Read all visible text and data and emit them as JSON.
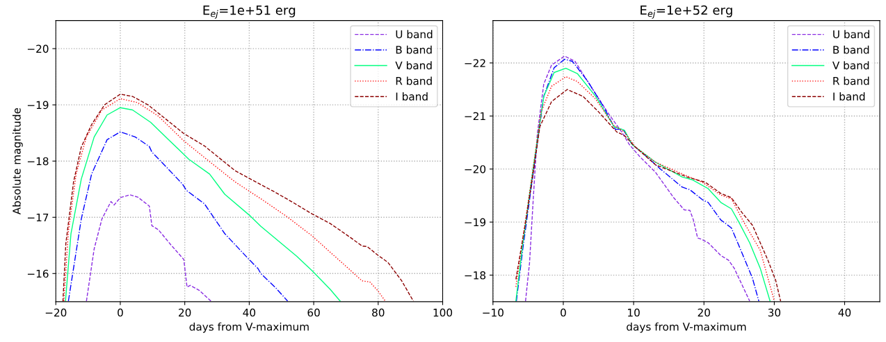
{
  "chart_data": [
    {
      "type": "line",
      "title": "E$_{ej}$=1e+51 erg",
      "xlabel": "days from V-maximum",
      "ylabel": "Absolute magnitude",
      "xlim": [
        -20,
        100
      ],
      "xticks": [
        -20,
        0,
        20,
        40,
        60,
        80,
        100
      ],
      "ylim": [
        -15.5,
        -20.5
      ],
      "yticks": [
        -16,
        -17,
        -18,
        -19,
        -20
      ],
      "grid": true,
      "legend": "top right",
      "series": [
        {
          "name": "U band",
          "color": "#8a2be2",
          "line_style": "dashed",
          "x": [
            -10.5,
            -8.1,
            -5.7,
            -2.9,
            -1.9,
            0,
            3,
            5.4,
            9,
            9.8,
            11.8,
            15.7,
            19.7,
            20.7,
            21.7,
            24.5,
            28.1
          ],
          "values": [
            -15.51,
            -16.44,
            -16.97,
            -17.28,
            -17.22,
            -17.35,
            -17.4,
            -17.36,
            -17.2,
            -16.85,
            -16.78,
            -16.51,
            -16.25,
            -15.76,
            -15.79,
            -15.7,
            -15.51
          ]
        },
        {
          "name": "B band",
          "color": "#0000ff",
          "line_style": "dashdot",
          "x": [
            -16.1,
            -12.1,
            -8.9,
            -4.1,
            0,
            4.6,
            9,
            9.8,
            14.2,
            19.3,
            20.5,
            26.1,
            32.4,
            39.6,
            42.7,
            43.6,
            48.3,
            51.9
          ],
          "values": [
            -15.51,
            -16.97,
            -17.77,
            -18.38,
            -18.52,
            -18.43,
            -18.26,
            -18.16,
            -17.9,
            -17.59,
            -17.48,
            -17.24,
            -16.71,
            -16.27,
            -16.09,
            -16.0,
            -15.74,
            -15.51
          ]
        },
        {
          "name": "V band",
          "color": "#00ff7f",
          "line_style": "solid",
          "x": [
            -17,
            -15.3,
            -12.1,
            -8.1,
            -4.1,
            0,
            3.8,
            9.4,
            15,
            19.7,
            21.3,
            27.7,
            32.4,
            40.4,
            43.6,
            54.7,
            59.5,
            65.1,
            68.2
          ],
          "values": [
            -15.51,
            -16.71,
            -17.68,
            -18.43,
            -18.82,
            -18.95,
            -18.91,
            -18.69,
            -18.38,
            -18.12,
            -18.03,
            -17.77,
            -17.41,
            -17.02,
            -16.84,
            -16.31,
            -16.05,
            -15.72,
            -15.51
          ]
        },
        {
          "name": "R band",
          "color": "#ff0000",
          "line_style": "dotted",
          "x": [
            -17.5,
            -16.1,
            -13.7,
            -10.5,
            -5.7,
            0,
            5.4,
            11.8,
            19.7,
            27.7,
            35.6,
            43.6,
            51.5,
            59.5,
            65.1,
            69.8,
            75,
            77.4,
            79.8,
            82.2
          ],
          "values": [
            -15.51,
            -16.75,
            -17.77,
            -18.43,
            -18.91,
            -19.11,
            -19.04,
            -18.8,
            -18.36,
            -17.99,
            -17.63,
            -17.33,
            -17.02,
            -16.67,
            -16.38,
            -16.14,
            -15.87,
            -15.85,
            -15.7,
            -15.51
          ]
        },
        {
          "name": "I band",
          "color": "#8b0000",
          "line_style": "dashed",
          "x": [
            -17.8,
            -16.9,
            -14.5,
            -12.1,
            -8.9,
            -4.9,
            0,
            3.8,
            8.6,
            13.4,
            19.7,
            26.1,
            31.7,
            35.6,
            40.4,
            47.6,
            53.1,
            59.5,
            65.1,
            67.4,
            71.4,
            75,
            76.6,
            79.8,
            83,
            87.3,
            90.9
          ],
          "values": [
            -15.5,
            -16.53,
            -17.63,
            -18.25,
            -18.65,
            -19.0,
            -19.19,
            -19.15,
            -19.0,
            -18.78,
            -18.49,
            -18.27,
            -18.01,
            -17.83,
            -17.68,
            -17.46,
            -17.28,
            -17.06,
            -16.89,
            -16.8,
            -16.64,
            -16.49,
            -16.48,
            -16.33,
            -16.2,
            -15.87,
            -15.51
          ]
        }
      ]
    },
    {
      "type": "line",
      "title": "E$_{ej}$=1e+52 erg",
      "xlabel": "days from V-maximum",
      "xlim": [
        -10,
        45
      ],
      "xticks": [
        -10,
        0,
        10,
        20,
        30,
        40
      ],
      "ylim": [
        -17.5,
        -22.8
      ],
      "yticks": [
        -18,
        -19,
        -20,
        -21,
        -22
      ],
      "grid": true,
      "legend": "top right",
      "series": [
        {
          "name": "U band",
          "color": "#8a2be2",
          "line_style": "dashed",
          "x": [
            -5.37,
            -4.8,
            -4.26,
            -3.7,
            -2.78,
            -1.67,
            0.19,
            1.67,
            3.9,
            6.5,
            8.3,
            9.4,
            10.9,
            13.1,
            15.7,
            17.2,
            18,
            18.5,
            19.1,
            19.6,
            20.6,
            22.4,
            23.5,
            24.3,
            26.5
          ],
          "values": [
            -17.51,
            -18.23,
            -19.46,
            -20.65,
            -21.6,
            -21.96,
            -22.13,
            -22.03,
            -21.56,
            -21.03,
            -20.7,
            -20.46,
            -20.23,
            -19.94,
            -19.46,
            -19.23,
            -19.22,
            -19.04,
            -18.7,
            -18.68,
            -18.61,
            -18.37,
            -18.28,
            -18.13,
            -17.51
          ]
        },
        {
          "name": "B band",
          "color": "#0000ff",
          "line_style": "dashdot",
          "x": [
            -6.67,
            -5.74,
            -4.26,
            -2.78,
            -1.3,
            0.19,
            1.3,
            3.5,
            5.7,
            7.4,
            8.5,
            9.8,
            11.3,
            13.9,
            16.9,
            18,
            19.8,
            20.6,
            22.4,
            23.9,
            25.4,
            26.9,
            27.8
          ],
          "values": [
            -17.51,
            -18.51,
            -19.94,
            -21.37,
            -21.91,
            -22.07,
            -22.03,
            -21.65,
            -21.18,
            -20.75,
            -20.75,
            -20.46,
            -20.3,
            -19.99,
            -19.66,
            -19.61,
            -19.42,
            -19.37,
            -19.04,
            -18.89,
            -18.42,
            -17.94,
            -17.51
          ]
        },
        {
          "name": "V band",
          "color": "#00ff7f",
          "line_style": "solid",
          "x": [
            -6.74,
            -5.74,
            -4.26,
            -2.78,
            -1.3,
            0.37,
            2.0,
            4.6,
            7.2,
            8.7,
            9.8,
            13.1,
            16.9,
            18.3,
            20.6,
            22.4,
            23.9,
            25,
            26.5,
            28,
            29.4
          ],
          "values": [
            -17.51,
            -18.61,
            -20.04,
            -21.37,
            -21.82,
            -21.9,
            -21.8,
            -21.37,
            -20.8,
            -20.73,
            -20.46,
            -20.13,
            -19.85,
            -19.8,
            -19.63,
            -19.37,
            -19.25,
            -18.99,
            -18.61,
            -18.13,
            -17.51
          ]
        },
        {
          "name": "R band",
          "color": "#ff0000",
          "line_style": "dotted",
          "x": [
            -6.74,
            -5.74,
            -4.26,
            -3.15,
            -1.67,
            0.37,
            2.0,
            4.6,
            7.2,
            8.7,
            10.2,
            13.1,
            17.6,
            19.8,
            22.4,
            23.9,
            25.7,
            28,
            30
          ],
          "values": [
            -17.78,
            -18.7,
            -20.04,
            -21.08,
            -21.56,
            -21.74,
            -21.65,
            -21.32,
            -20.82,
            -20.7,
            -20.42,
            -20.13,
            -19.87,
            -19.75,
            -19.51,
            -19.44,
            -18.99,
            -18.47,
            -17.51
          ]
        },
        {
          "name": "I band",
          "color": "#8b0000",
          "line_style": "dashed",
          "x": [
            -6.74,
            -5.37,
            -4.26,
            -3.33,
            -1.67,
            0.56,
            2.8,
            5,
            7.6,
            8.7,
            10.2,
            13.1,
            17.6,
            20.2,
            22.4,
            23.9,
            25.4,
            26.9,
            29.1,
            30.2,
            30.9
          ],
          "values": [
            -17.92,
            -18.99,
            -19.94,
            -20.8,
            -21.27,
            -21.5,
            -21.37,
            -21.08,
            -20.7,
            -20.63,
            -20.42,
            -20.08,
            -19.85,
            -19.75,
            -19.54,
            -19.46,
            -19.18,
            -18.94,
            -18.28,
            -17.9,
            -17.51
          ]
        }
      ]
    }
  ]
}
